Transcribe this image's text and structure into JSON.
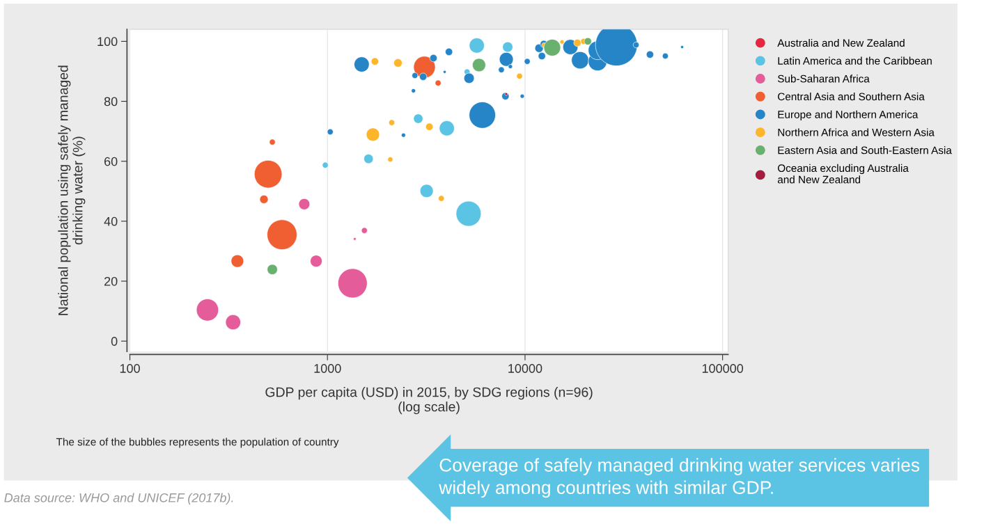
{
  "chart_data": {
    "type": "bubble",
    "xlabel": "GDP per capita (USD) in 2015, by SDG regions (n=96)\n(log scale)",
    "ylabel": "National population using safely managed\ndrinking water (%)",
    "log": "x",
    "grid": "x",
    "legend": "right",
    "marker": "circle",
    "xlim": [
      100,
      106700
    ],
    "xticks": [
      100,
      1000,
      10000,
      100000
    ],
    "ylim": [
      -3.5,
      104
    ],
    "yticks": [
      0,
      20,
      40,
      60,
      80,
      100
    ],
    "annotations": [
      "The size of the bubbles represents the population of country",
      "Data source: WHO and UNICEF (2017b).",
      "Coverage of safely managed drinking water services varies\nwidely among countries with similar GDP."
    ],
    "series": [
      {
        "name": "Australia and New Zealand",
        "color": "#e8273e"
      },
      {
        "name": "Latin America and the Caribbean",
        "color": "#5bc4e5",
        "x": [
          5700,
          8170,
          5090,
          2880,
          4020,
          975,
          1614,
          3177,
          5180
        ],
        "values": [
          98.6,
          98.1,
          89.8,
          74.2,
          71.0,
          58.7,
          60.8,
          50.1,
          42.5
        ],
        "sizes": [
          0.13,
          0.06,
          0.02,
          0.05,
          0.13,
          0.02,
          0.05,
          0.1,
          0.36
        ]
      },
      {
        "name": "Sub-Saharan Africa",
        "color": "#e55c9a",
        "x": [
          247,
          333,
          1340,
          877,
          763,
          1538,
          1374
        ],
        "values": [
          10.4,
          6.3,
          19.3,
          26.7,
          45.7,
          36.9,
          34.1
        ],
        "sizes": [
          0.28,
          0.13,
          0.49,
          0.08,
          0.07,
          0.02,
          0.004
        ]
      },
      {
        "name": "Central Asia and Southern Asia",
        "color": "#f05f32",
        "x": [
          501,
          589,
          350,
          477,
          526,
          3097,
          3630
        ],
        "values": [
          55.7,
          35.5,
          26.7,
          47.3,
          66.4,
          91.4,
          86.1
        ],
        "sizes": [
          0.44,
          0.51,
          0.09,
          0.04,
          0.02,
          0.27,
          0.02
        ]
      },
      {
        "name": "Europe and Northern America",
        "color": "#2585c6",
        "x": [
          1490,
          3440,
          4120,
          2770,
          3050,
          3920,
          2725,
          5210,
          8040,
          7590,
          8430,
          10260,
          7960,
          9680,
          11780,
          12450,
          12170,
          14190,
          16970,
          19000,
          23300,
          23300,
          29000,
          36500,
          42900,
          51300,
          62400,
          6080,
          2425,
          1033
        ],
        "values": [
          92.3,
          94.4,
          96.5,
          88.6,
          88.2,
          89.8,
          83.5,
          87.7,
          94.0,
          90.5,
          91.6,
          93.3,
          81.7,
          81.7,
          97.7,
          99.1,
          95.1,
          100,
          98.1,
          93.7,
          93.3,
          97.0,
          98.8,
          98.8,
          95.6,
          95.1,
          98.1,
          75.4,
          68.7,
          69.8
        ],
        "sizes": [
          0.13,
          0.03,
          0.03,
          0.02,
          0.03,
          0.005,
          0.01,
          0.06,
          0.11,
          0.02,
          0.01,
          0.02,
          0.03,
          0.01,
          0.04,
          0.03,
          0.03,
          0.005,
          0.13,
          0.17,
          0.2,
          0.2,
          1,
          0.02,
          0.03,
          0.02,
          0.005,
          0.4,
          0.01,
          0.02
        ]
      },
      {
        "name": "Northern Africa and Western Asia",
        "color": "#fdb52c",
        "x": [
          1738,
          2275,
          1698,
          2115,
          2080,
          3280,
          3770,
          9380,
          12450,
          15390,
          18410,
          19800
        ],
        "values": [
          93.3,
          92.8,
          68.9,
          72.9,
          60.6,
          71.5,
          47.6,
          88.4,
          98.8,
          99.8,
          99.5,
          100
        ],
        "sizes": [
          0.03,
          0.04,
          0.1,
          0.02,
          0.015,
          0.03,
          0.02,
          0.02,
          0.01,
          0.01,
          0.03,
          0.02
        ]
      },
      {
        "name": "Eastern Asia and South-Eastern Asia",
        "color": "#6ab06e",
        "x": [
          526,
          5850,
          13730,
          20800
        ],
        "values": [
          23.9,
          92.1,
          97.9,
          100
        ],
        "sizes": [
          0.06,
          0.1,
          0.16,
          0.03
        ]
      },
      {
        "name": "Oceania excluding Australia\nand New Zealand",
        "color": "#a51c3f",
        "x": [
          8030
        ],
        "values": [
          82.4
        ],
        "sizes": [
          0.004
        ]
      }
    ]
  }
}
